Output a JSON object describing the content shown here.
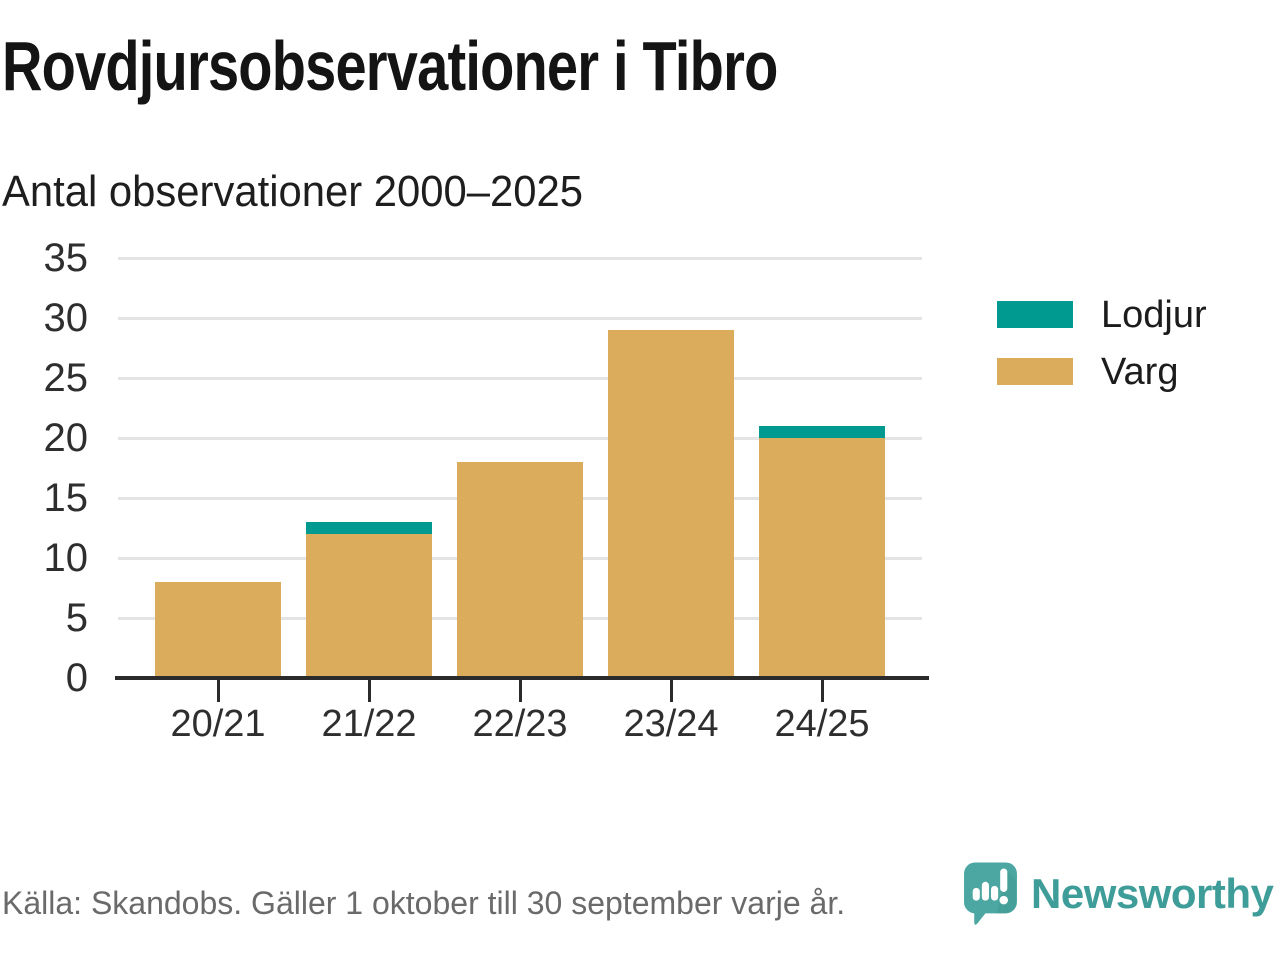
{
  "header": {
    "title": "Rovdjursobservationer i Tibro",
    "subtitle": "Antal observationer 2000–2025"
  },
  "chart_data": {
    "type": "bar",
    "stacked": true,
    "title": "Rovdjursobservationer i Tibro",
    "subtitle": "Antal observationer 2000–2025",
    "categories": [
      "20/21",
      "21/22",
      "22/23",
      "23/24",
      "24/25"
    ],
    "series": [
      {
        "name": "Varg",
        "color": "#DBAC5B",
        "values": [
          8,
          12,
          18,
          29,
          20
        ]
      },
      {
        "name": "Lodjur",
        "color": "#009A90",
        "values": [
          0,
          1,
          0,
          0,
          1
        ]
      }
    ],
    "totals": [
      8,
      13,
      18,
      29,
      21
    ],
    "xlabel": "",
    "ylabel": "",
    "ylim": [
      0,
      35
    ],
    "yticks": [
      0,
      5,
      10,
      15,
      20,
      25,
      30,
      35
    ],
    "grid": true,
    "legend_position": "right",
    "legend": [
      {
        "label": "Lodjur",
        "color": "#009A90"
      },
      {
        "label": "Varg",
        "color": "#DBAC5B"
      }
    ]
  },
  "footer": {
    "source": "Källa: Skandobs. Gäller 1 oktober till 30 september varje år.",
    "brand": "Newsworthy"
  },
  "colors": {
    "lodjur": "#009A90",
    "varg": "#DBAC5B",
    "grid": "#E4E4E4",
    "axis": "#2B2B2B",
    "brand_teal": "#4CA7A2",
    "brand_text": "#3E9D99"
  }
}
